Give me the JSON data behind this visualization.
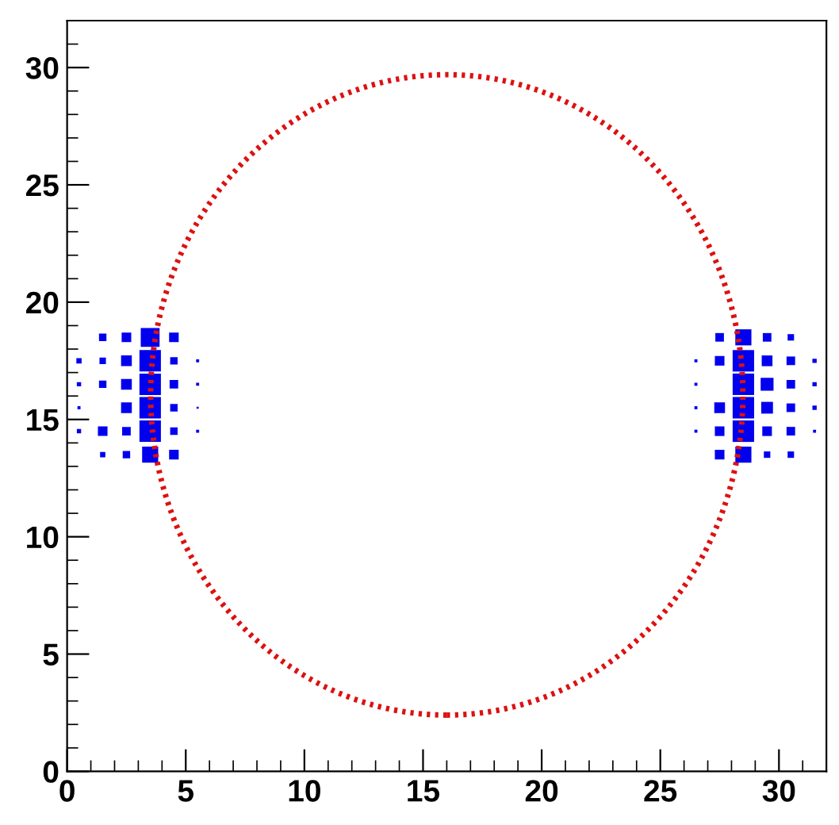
{
  "chart_data": {
    "type": "bubble",
    "xlim": [
      0,
      32
    ],
    "ylim": [
      0,
      32
    ],
    "xticks": [
      0,
      5,
      10,
      15,
      20,
      25,
      30
    ],
    "yticks": [
      0,
      5,
      10,
      15,
      20,
      25,
      30
    ],
    "grid": false,
    "legend": false,
    "series": [
      {
        "type": "bubble",
        "color": "#0000ee",
        "marker": "square",
        "x": [
          1.5,
          2.5,
          3.5,
          4.5,
          0.5,
          1.5,
          2.5,
          3.5,
          4.5,
          5.5,
          0.5,
          1.5,
          2.5,
          3.5,
          4.5,
          5.5,
          0.5,
          2.5,
          3.5,
          4.5,
          5.5,
          0.5,
          1.5,
          2.5,
          3.5,
          4.5,
          5.5,
          1.5,
          2.5,
          3.5,
          4.5,
          27.5,
          28.5,
          29.5,
          30.5,
          26.5,
          27.5,
          28.5,
          29.5,
          30.5,
          31.5,
          26.5,
          28.5,
          29.5,
          30.5,
          31.5,
          26.5,
          27.5,
          28.5,
          29.5,
          30.5,
          31.5,
          26.5,
          27.5,
          28.5,
          29.5,
          30.5,
          31.5,
          27.5,
          28.5,
          29.5,
          30.5
        ],
        "values": [
          18.5,
          18.5,
          18.5,
          18.5,
          17.5,
          17.5,
          17.5,
          17.5,
          17.5,
          17.5,
          16.5,
          16.5,
          16.5,
          16.5,
          16.5,
          16.5,
          15.5,
          15.5,
          15.5,
          15.5,
          15.5,
          14.5,
          14.5,
          14.5,
          14.5,
          14.5,
          14.5,
          13.5,
          13.5,
          13.5,
          13.5,
          18.5,
          18.5,
          18.5,
          18.5,
          17.5,
          17.5,
          17.5,
          17.5,
          17.5,
          17.5,
          16.5,
          16.5,
          16.5,
          16.5,
          16.5,
          15.5,
          15.5,
          15.5,
          15.5,
          15.5,
          15.5,
          14.5,
          14.5,
          14.5,
          14.5,
          14.5,
          14.5,
          13.5,
          13.5,
          13.5,
          13.5
        ],
        "sizes": [
          0.12,
          0.2,
          0.77,
          0.2,
          0.06,
          0.09,
          0.25,
          1,
          0.12,
          0.02,
          0.04,
          0.12,
          0.25,
          1,
          0.16,
          0.02,
          0.02,
          0.25,
          1,
          0.12,
          0.01,
          0.04,
          0.2,
          0.16,
          1,
          0.12,
          0.02,
          0.06,
          0.12,
          0.56,
          0.2,
          0.16,
          0.56,
          0.16,
          0.09,
          0.02,
          0.2,
          1,
          0.25,
          0.16,
          0.04,
          0.02,
          1,
          0.36,
          0.16,
          0.04,
          0.02,
          0.25,
          1,
          0.3,
          0.16,
          0.04,
          0.02,
          0.2,
          1,
          0.2,
          0.16,
          0.02,
          0.2,
          0.56,
          0.09,
          0.09
        ]
      }
    ]
  }
}
